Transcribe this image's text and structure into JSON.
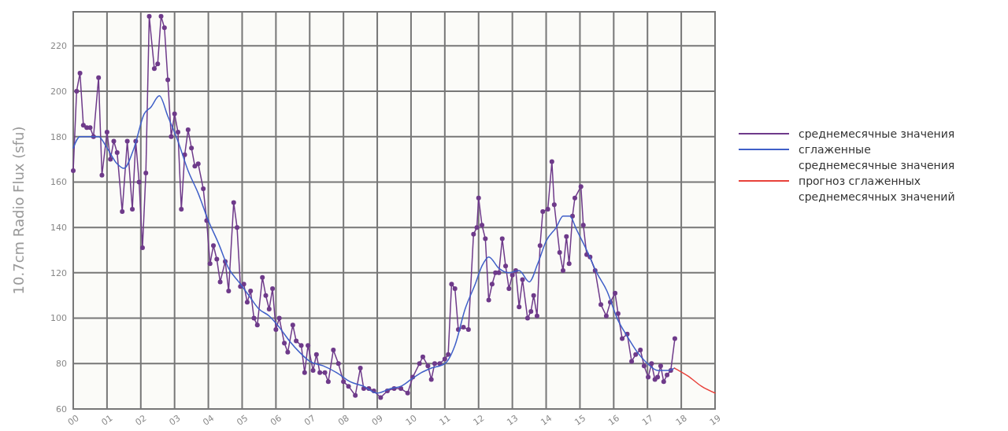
{
  "chart_data": {
    "type": "line",
    "ylabel": "10.7cm Radio Flux (sfu)",
    "xlim": [
      2000,
      2019
    ],
    "ylim": [
      60,
      235
    ],
    "xticks": [
      {
        "value": 2000,
        "label": "00"
      },
      {
        "value": 2001,
        "label": "01"
      },
      {
        "value": 2002,
        "label": "02"
      },
      {
        "value": 2003,
        "label": "03"
      },
      {
        "value": 2004,
        "label": "04"
      },
      {
        "value": 2005,
        "label": "05"
      },
      {
        "value": 2006,
        "label": "06"
      },
      {
        "value": 2007,
        "label": "07"
      },
      {
        "value": 2008,
        "label": "08"
      },
      {
        "value": 2009,
        "label": "09"
      },
      {
        "value": 2010,
        "label": "10"
      },
      {
        "value": 2011,
        "label": "11"
      },
      {
        "value": 2012,
        "label": "12"
      },
      {
        "value": 2013,
        "label": "13"
      },
      {
        "value": 2014,
        "label": "14"
      },
      {
        "value": 2015,
        "label": "15"
      },
      {
        "value": 2016,
        "label": "16"
      },
      {
        "value": 2017,
        "label": "17"
      },
      {
        "value": 2018,
        "label": "18"
      },
      {
        "value": 2019,
        "label": "19"
      }
    ],
    "yticks": [
      60,
      80,
      100,
      120,
      140,
      160,
      180,
      200,
      220
    ],
    "grid": true,
    "legend": "right",
    "series": [
      {
        "name": "среднемесячные значения",
        "color": "#6e3a8a",
        "marker": "circle",
        "x": [
          2000.0,
          2000.1,
          2000.2,
          2000.3,
          2000.4,
          2000.5,
          2000.6,
          2000.75,
          2000.85,
          2001.0,
          2001.1,
          2001.2,
          2001.3,
          2001.45,
          2001.6,
          2001.75,
          2001.85,
          2001.95,
          2002.05,
          2002.15,
          2002.25,
          2002.4,
          2002.5,
          2002.6,
          2002.7,
          2002.8,
          2002.9,
          2003.0,
          2003.1,
          2003.2,
          2003.3,
          2003.4,
          2003.5,
          2003.6,
          2003.7,
          2003.85,
          2003.95,
          2004.05,
          2004.15,
          2004.25,
          2004.35,
          2004.5,
          2004.6,
          2004.75,
          2004.85,
          2004.95,
          2005.05,
          2005.15,
          2005.25,
          2005.35,
          2005.45,
          2005.6,
          2005.7,
          2005.8,
          2005.9,
          2006.0,
          2006.1,
          2006.25,
          2006.35,
          2006.5,
          2006.6,
          2006.75,
          2006.85,
          2006.95,
          2007.1,
          2007.2,
          2007.3,
          2007.45,
          2007.55,
          2007.7,
          2007.85,
          2008.0,
          2008.15,
          2008.35,
          2008.5,
          2008.6,
          2008.75,
          2008.9,
          2009.1,
          2009.3,
          2009.5,
          2009.7,
          2009.9,
          2010.05,
          2010.25,
          2010.35,
          2010.5,
          2010.6,
          2010.7,
          2010.85,
          2011.0,
          2011.1,
          2011.2,
          2011.3,
          2011.4,
          2011.55,
          2011.7,
          2011.85,
          2011.95,
          2012.0,
          2012.1,
          2012.2,
          2012.3,
          2012.4,
          2012.5,
          2012.6,
          2012.7,
          2012.8,
          2012.9,
          2013.0,
          2013.1,
          2013.2,
          2013.3,
          2013.45,
          2013.55,
          2013.63,
          2013.73,
          2013.82,
          2013.9,
          2014.05,
          2014.17,
          2014.24,
          2014.4,
          2014.5,
          2014.6,
          2014.68,
          2014.78,
          2014.85,
          2015.03,
          2015.1,
          2015.2,
          2015.3,
          2015.45,
          2015.62,
          2015.78,
          2015.9,
          2016.04,
          2016.13,
          2016.25,
          2016.4,
          2016.53,
          2016.65,
          2016.79,
          2016.9,
          2017.02,
          2017.12,
          2017.22,
          2017.3,
          2017.39,
          2017.48,
          2017.58,
          2017.69,
          2017.81
        ],
        "values": [
          165,
          200,
          208,
          185,
          184,
          184,
          180,
          206,
          163,
          182,
          170,
          178,
          173,
          147,
          178,
          148,
          178,
          160,
          131,
          164,
          233,
          210,
          212,
          233,
          228,
          205,
          180,
          190,
          182,
          148,
          172,
          183,
          175,
          167,
          168,
          157,
          143,
          124,
          132,
          126,
          116,
          125,
          112,
          151,
          140,
          114,
          115,
          107,
          112,
          100,
          97,
          118,
          110,
          104,
          113,
          95,
          100,
          89,
          85,
          97,
          90,
          88,
          76,
          88,
          77,
          84,
          76,
          76,
          72,
          86,
          80,
          72,
          70,
          66,
          78,
          69,
          69,
          68,
          65,
          68,
          69,
          69,
          67,
          74,
          80,
          83,
          79,
          73,
          80,
          80,
          82,
          84,
          115,
          113,
          95,
          96,
          95,
          137,
          140,
          153,
          141,
          135,
          108,
          115,
          120,
          120,
          135,
          123,
          113,
          119,
          121,
          105,
          117,
          100,
          103,
          110,
          101,
          132,
          147,
          148,
          169,
          150,
          129,
          121,
          136,
          124,
          145,
          153,
          158,
          141,
          128,
          127,
          121,
          106,
          101,
          107,
          111,
          102,
          91,
          93,
          81,
          84,
          86,
          79,
          74,
          80,
          73,
          74,
          79,
          72,
          75,
          77,
          91
        ]
      },
      {
        "name": "сглаженные среднемесячные значения",
        "color": "#3f5fc8",
        "x": [
          2000.0,
          2000.2,
          2000.5,
          2000.75,
          2001.0,
          2001.3,
          2001.5,
          2001.8,
          2002.1,
          2002.3,
          2002.55,
          2002.8,
          2003.1,
          2003.4,
          2003.7,
          2004.0,
          2004.3,
          2004.6,
          2004.9,
          2005.2,
          2005.5,
          2005.8,
          2006.1,
          2006.4,
          2006.7,
          2007.0,
          2007.4,
          2007.8,
          2008.2,
          2008.6,
          2009.0,
          2009.4,
          2009.7,
          2010.0,
          2010.3,
          2010.6,
          2011.0,
          2011.3,
          2011.6,
          2011.9,
          2012.1,
          2012.3,
          2012.6,
          2012.9,
          2013.2,
          2013.5,
          2013.75,
          2014.0,
          2014.3,
          2014.5,
          2014.7,
          2014.9,
          2015.2,
          2015.5,
          2015.8,
          2016.1,
          2016.4,
          2016.7,
          2017.0,
          2017.3,
          2017.6,
          2017.8
        ],
        "values": [
          175,
          180,
          180,
          180,
          175,
          168,
          166,
          175,
          190,
          193,
          198,
          189,
          178,
          165,
          155,
          143,
          133,
          122,
          116,
          110,
          104,
          101,
          96,
          90,
          85,
          81,
          79,
          76,
          72,
          70,
          67,
          69,
          70,
          73,
          76,
          78,
          80,
          88,
          104,
          115,
          123,
          127,
          122,
          120,
          121,
          116,
          124,
          134,
          140,
          145,
          145,
          139,
          130,
          120,
          112,
          100,
          92,
          85,
          80,
          77,
          77,
          78
        ]
      },
      {
        "name": "прогноз сглаженных среднемесячных значений",
        "color": "#e8413a",
        "x": [
          2017.8,
          2018.2,
          2018.6,
          2019.0
        ],
        "values": [
          78,
          74.5,
          70,
          67
        ]
      }
    ]
  }
}
